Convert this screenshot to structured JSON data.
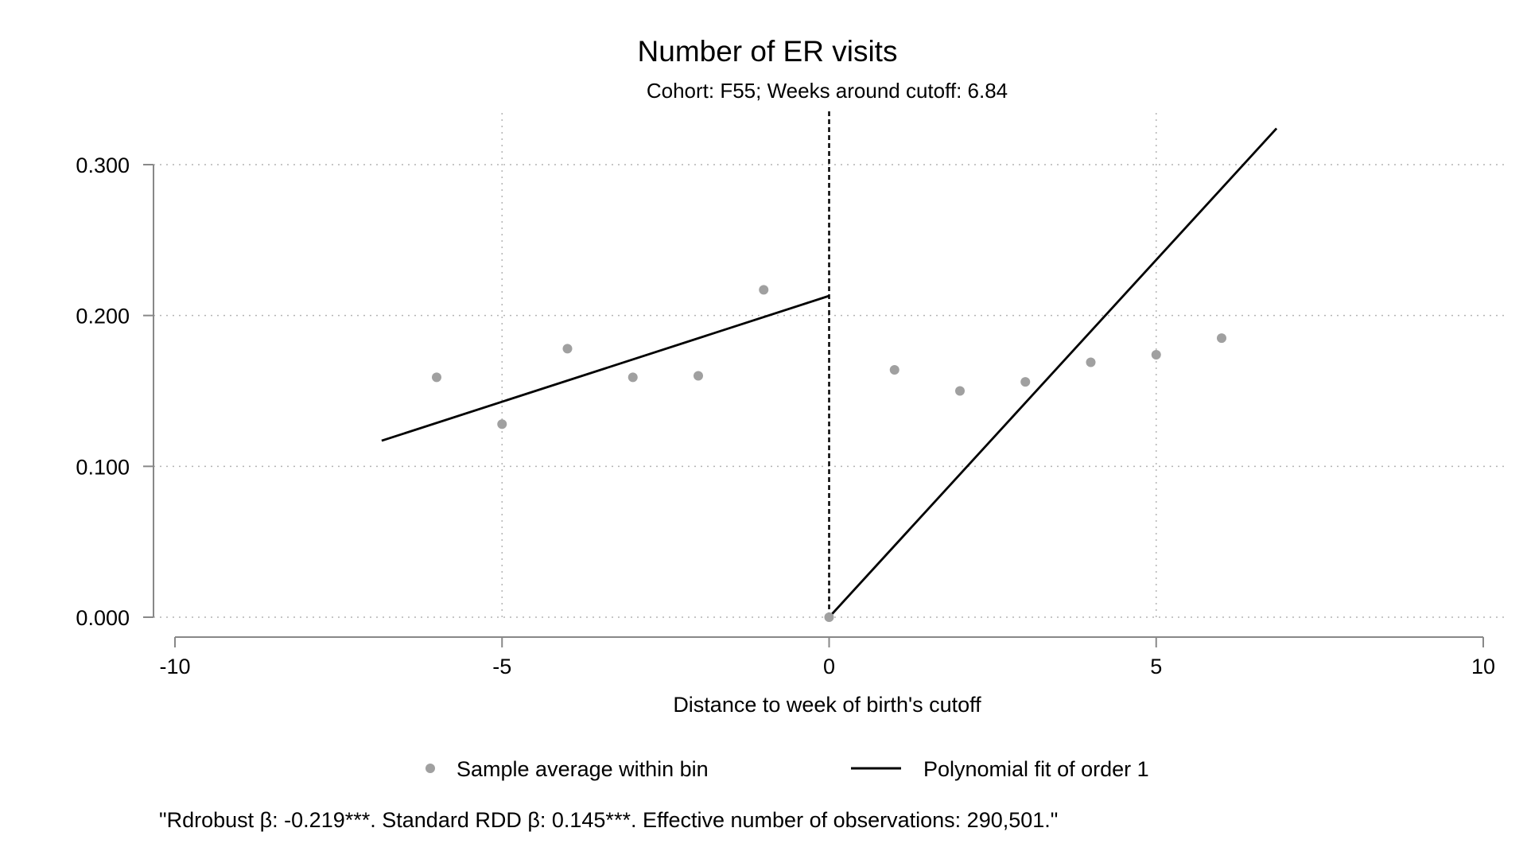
{
  "chart_data": {
    "type": "scatter",
    "title": "Number of ER visits",
    "subtitle": "Cohort: F55; Weeks around cutoff: 6.84",
    "xlabel": "Distance to week of birth's cutoff",
    "ylabel": "",
    "xlim": [
      -10,
      10
    ],
    "ylim": [
      0,
      0.3
    ],
    "xticks": [
      -10,
      -5,
      0,
      5,
      10
    ],
    "xtick_labels": [
      "-10",
      "-5",
      "0",
      "5",
      "10"
    ],
    "yticks": [
      0,
      0.1,
      0.2,
      0.3
    ],
    "ytick_labels": [
      "0.000",
      "0.100",
      "0.200",
      "0.300"
    ],
    "grid": "dotted",
    "cutoff": 0,
    "legend_placement": "bottom",
    "series": [
      {
        "name": "Sample average within bin",
        "kind": "scatter",
        "color": "#a0a0a0",
        "x": [
          -6,
          -5,
          -4,
          -3,
          -2,
          -1,
          0,
          1,
          2,
          3,
          4,
          5,
          6
        ],
        "y": [
          0.159,
          0.128,
          0.178,
          0.159,
          0.16,
          0.217,
          0.0,
          0.164,
          0.15,
          0.156,
          0.169,
          0.174,
          0.185
        ]
      },
      {
        "name": "Polynomial fit of order 1",
        "kind": "line",
        "color": "#000000",
        "segments": [
          {
            "x": [
              -6.84,
              0
            ],
            "y": [
              0.117,
              0.213
            ]
          },
          {
            "x": [
              0,
              6.84
            ],
            "y": [
              0.0,
              0.324
            ]
          }
        ]
      }
    ],
    "note": "\"Rdrobust β: -0.219***. Standard RDD β: 0.145***. Effective number of observations: 290,501.\""
  }
}
